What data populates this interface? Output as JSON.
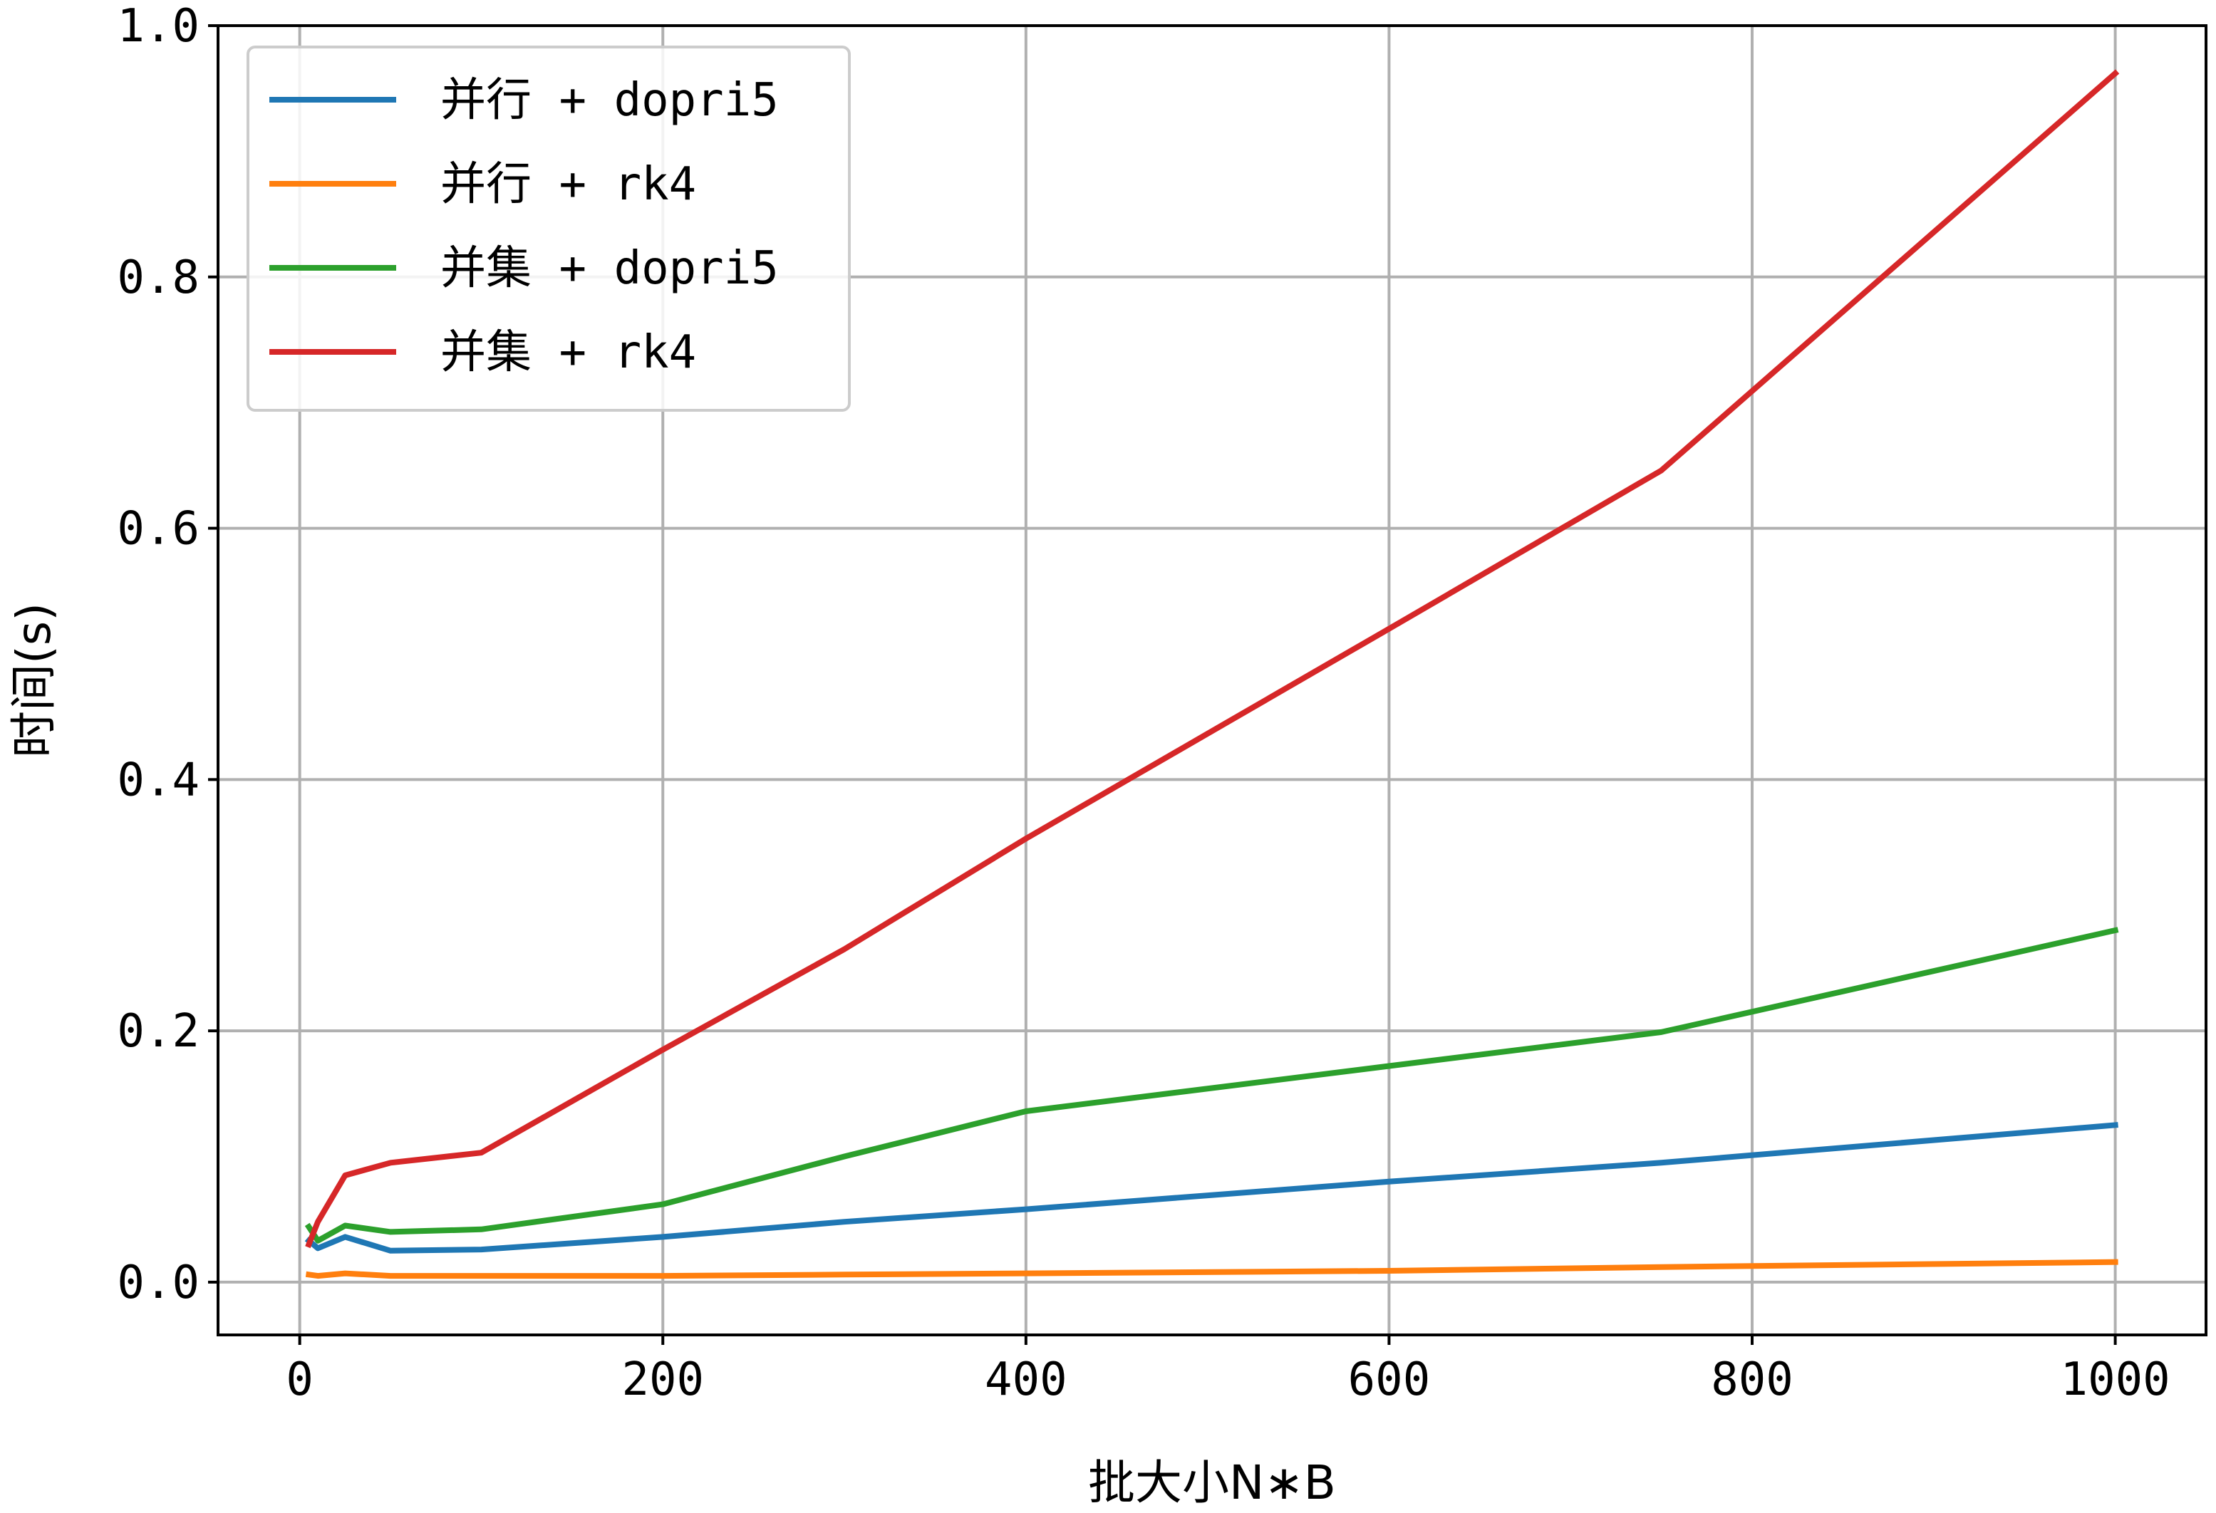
{
  "chart_data": {
    "type": "line",
    "xlabel": "批大小N∗B",
    "ylabel": "时间(s)",
    "xlim": [
      -45,
      1050
    ],
    "ylim": [
      -0.042,
      1.0
    ],
    "x_ticks": [
      0,
      200,
      400,
      600,
      800,
      1000
    ],
    "x_tick_labels": [
      "0",
      "200",
      "400",
      "600",
      "800",
      "1000"
    ],
    "y_ticks": [
      0.0,
      0.2,
      0.4,
      0.6,
      0.8,
      1.0
    ],
    "y_tick_labels": [
      "0.0",
      "0.2",
      "0.4",
      "0.6",
      "0.8",
      "1.0"
    ],
    "grid": true,
    "legend_position": "top-left",
    "x": [
      5,
      10,
      25,
      50,
      100,
      200,
      300,
      400,
      600,
      750,
      1000
    ],
    "series": [
      {
        "name": "并行 + dopri5",
        "color": "#1f77b4",
        "values": [
          0.033,
          0.027,
          0.036,
          0.025,
          0.026,
          0.036,
          0.048,
          0.058,
          0.08,
          0.095,
          0.125
        ]
      },
      {
        "name": "并行 + rk4",
        "color": "#ff7f0e",
        "values": [
          0.006,
          0.005,
          0.007,
          0.005,
          0.005,
          0.005,
          0.006,
          0.007,
          0.009,
          0.012,
          0.016
        ]
      },
      {
        "name": "并集 + dopri5",
        "color": "#2ca02c",
        "values": [
          0.044,
          0.033,
          0.045,
          0.04,
          0.042,
          0.062,
          0.1,
          0.136,
          0.172,
          0.199,
          0.28
        ]
      },
      {
        "name": "并集 + rk4",
        "color": "#d62728",
        "values": [
          0.03,
          0.048,
          0.085,
          0.095,
          0.103,
          0.185,
          0.265,
          0.353,
          0.52,
          0.646,
          0.962
        ]
      }
    ]
  }
}
